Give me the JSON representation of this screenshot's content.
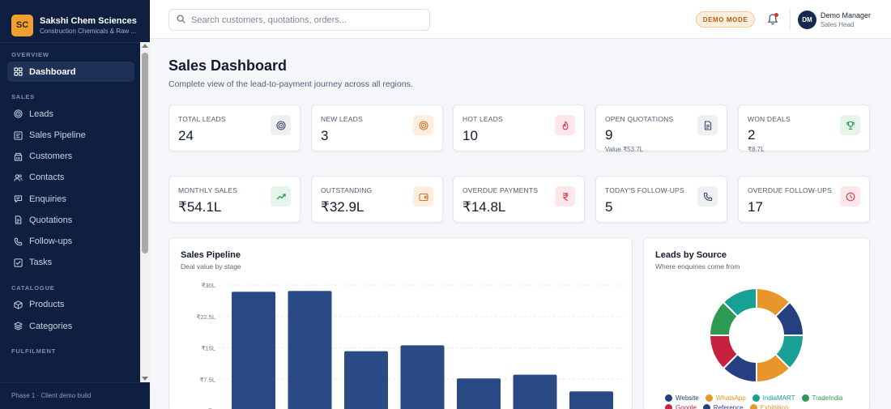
{
  "brand": {
    "initials": "SC",
    "name": "Sakshi Chem Sciences",
    "subtitle": "Construction Chemicals & Raw ..."
  },
  "sidebar": {
    "sections": [
      {
        "title": "OVERVIEW",
        "items": [
          {
            "label": "Dashboard",
            "icon": "grid-icon",
            "active": true
          }
        ]
      },
      {
        "title": "SALES",
        "items": [
          {
            "label": "Leads",
            "icon": "target-icon"
          },
          {
            "label": "Sales Pipeline",
            "icon": "pipeline-icon"
          },
          {
            "label": "Customers",
            "icon": "building-icon"
          },
          {
            "label": "Contacts",
            "icon": "users-icon"
          },
          {
            "label": "Enquiries",
            "icon": "message-icon"
          },
          {
            "label": "Quotations",
            "icon": "file-icon"
          },
          {
            "label": "Follow-ups",
            "icon": "phone-icon"
          },
          {
            "label": "Tasks",
            "icon": "checkbox-icon"
          }
        ]
      },
      {
        "title": "CATALOGUE",
        "items": [
          {
            "label": "Products",
            "icon": "box-icon"
          },
          {
            "label": "Categories",
            "icon": "layers-icon"
          }
        ]
      },
      {
        "title": "FULFILMENT",
        "items": []
      }
    ],
    "footer": "Phase 1 · Client demo build"
  },
  "topbar": {
    "search_placeholder": "Search customers, quotations, orders...",
    "demo_badge": "DEMO MODE",
    "user": {
      "initials": "DM",
      "name": "Demo Manager",
      "role": "Sales Head"
    }
  },
  "page": {
    "title": "Sales Dashboard",
    "subtitle": "Complete view of the lead-to-payment journey across all regions."
  },
  "stats": [
    {
      "label": "TOTAL LEADS",
      "value": "24",
      "icon": "target-icon",
      "tint": "#eef0f4",
      "color": "#3c4a63"
    },
    {
      "label": "NEW LEADS",
      "value": "3",
      "icon": "target-icon",
      "tint": "#fdeedf",
      "color": "#d2742a"
    },
    {
      "label": "HOT LEADS",
      "value": "10",
      "icon": "flame-icon",
      "tint": "#fde7ea",
      "color": "#d33a4f"
    },
    {
      "label": "OPEN QUOTATIONS",
      "value": "9",
      "extra": "Value ₹53.7L",
      "icon": "file-icon",
      "tint": "#eef0f4",
      "color": "#3c4a63"
    },
    {
      "label": "WON DEALS",
      "value": "2",
      "extra": "₹8.7L",
      "icon": "trophy-icon",
      "tint": "#e5f5ea",
      "color": "#2f9a55"
    },
    {
      "label": "MONTHLY SALES",
      "value": "₹54.1L",
      "icon": "trend-up-icon",
      "tint": "#e5f5ea",
      "color": "#2f9a55"
    },
    {
      "label": "OUTSTANDING",
      "value": "₹32.9L",
      "icon": "wallet-icon",
      "tint": "#fdeedf",
      "color": "#d2742a"
    },
    {
      "label": "OVERDUE PAYMENTS",
      "value": "₹14.8L",
      "icon": "rupee-icon",
      "tint": "#fde7ea",
      "color": "#d33a4f"
    },
    {
      "label": "TODAY'S FOLLOW-UPS",
      "value": "5",
      "icon": "phone-icon",
      "tint": "#eef0f4",
      "color": "#3c4a63"
    },
    {
      "label": "OVERDUE FOLLOW-UPS",
      "value": "17",
      "icon": "clock-icon",
      "tint": "#fde7ea",
      "color": "#d33a4f"
    }
  ],
  "pipeline_panel": {
    "title": "Sales Pipeline",
    "subtitle": "Deal value by stage"
  },
  "source_panel": {
    "title": "Leads by Source",
    "subtitle": "Where enquiries come from"
  },
  "chart_data": [
    {
      "type": "bar",
      "title": "Sales Pipeline",
      "subtitle": "Deal value by stage",
      "y_tick_labels": [
        "₹30L",
        "₹22.5L",
        "₹15L",
        "₹7.5L",
        "₹0"
      ],
      "ylim": [
        0,
        30
      ],
      "unit": "₹L",
      "values": [
        28.4,
        28.6,
        14.2,
        15.6,
        7.7,
        8.6,
        4.6
      ],
      "color": "#2a4a86",
      "grid": true
    },
    {
      "type": "pie",
      "title": "Leads by Source",
      "subtitle": "Where enquiries come from",
      "donut": true,
      "segments": [
        {
          "label": "Exhibition",
          "value": 1,
          "color": "#e8962a"
        },
        {
          "label": "Website",
          "value": 1,
          "color": "#253f80"
        },
        {
          "label": "IndiaMART",
          "value": 1,
          "color": "#18a094"
        },
        {
          "label": "Exhibition",
          "value": 1,
          "color": "#e8962a"
        },
        {
          "label": "Website",
          "value": 1,
          "color": "#253f80"
        },
        {
          "label": "Google",
          "value": 1,
          "color": "#c8203f"
        },
        {
          "label": "TradeIndia",
          "value": 1,
          "color": "#2e9a53"
        },
        {
          "label": "IndiaMART",
          "value": 1,
          "color": "#18a094"
        }
      ],
      "legend": [
        {
          "label": "Website",
          "color": "#253f80"
        },
        {
          "label": "WhatsApp",
          "color": "#e8962a"
        },
        {
          "label": "IndiaMART",
          "color": "#18a094"
        },
        {
          "label": "TradeIndia",
          "color": "#2e9a53"
        },
        {
          "label": "Google",
          "color": "#c8203f"
        },
        {
          "label": "Reference",
          "color": "#253f80"
        },
        {
          "label": "Exhibition",
          "color": "#e8962a"
        }
      ],
      "legend_position": "bottom"
    }
  ]
}
